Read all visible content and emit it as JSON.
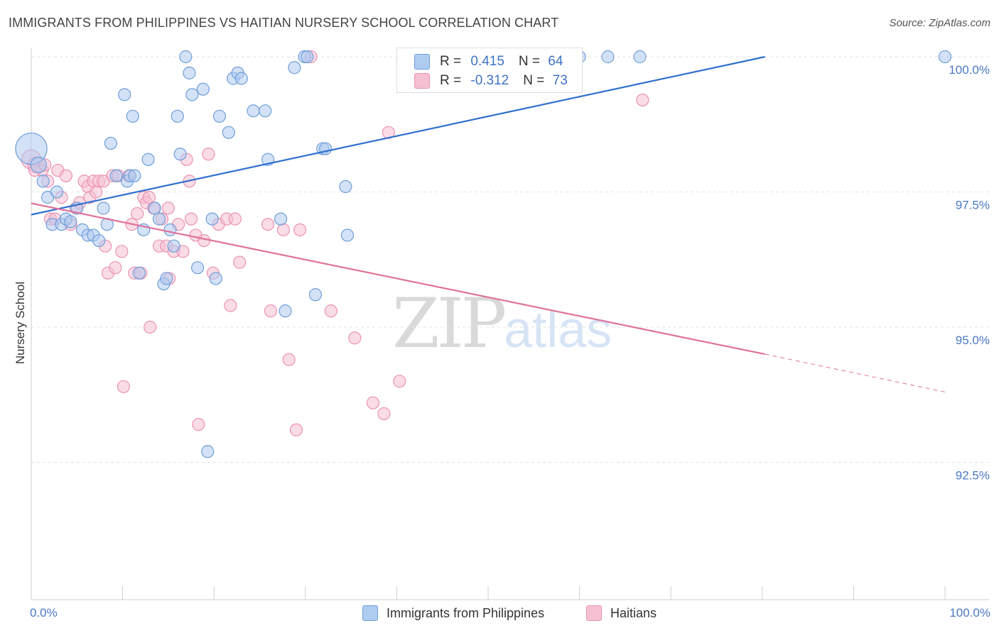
{
  "header": {
    "title": "IMMIGRANTS FROM PHILIPPINES VS HAITIAN NURSERY SCHOOL CORRELATION CHART",
    "source": "Source: ZipAtlas.com"
  },
  "watermark": {
    "zip": "ZIP",
    "atlas": "atlas"
  },
  "legend": {
    "r_label": "R = ",
    "n_label": "N = ",
    "series1": {
      "r": "0.415",
      "n": "64"
    },
    "series2": {
      "r": "-0.312",
      "n": "73"
    }
  },
  "bottom_legend": {
    "series1": "Immigrants from Philippines",
    "series2": "Haitians"
  },
  "colors": {
    "blue_fill": "#aecbf0",
    "blue_stroke": "#6f9ed8",
    "blue_line": "#2f6fcf",
    "pink_fill": "#f5c0d2",
    "pink_stroke": "#ea93b3",
    "pink_line": "#e0729a",
    "tick_text": "#4a78c4",
    "grid": "#e3e3e3"
  },
  "chart_data": {
    "type": "scatter",
    "title": "IMMIGRANTS FROM PHILIPPINES VS HAITIAN NURSERY SCHOOL CORRELATION CHART",
    "xlabel": "",
    "ylabel": "Nursery School",
    "xlim": [
      0,
      100
    ],
    "ylim": [
      90.0,
      100.3
    ],
    "x_tick_labels": [
      "0.0%",
      "100.0%"
    ],
    "y_ticks": [
      {
        "value": 100.0,
        "label": "100.0%"
      },
      {
        "value": 97.5,
        "label": "97.5%"
      },
      {
        "value": 95.0,
        "label": "95.0%"
      },
      {
        "value": 92.5,
        "label": "92.5%"
      }
    ],
    "series": [
      {
        "name": "Immigrants from Philippines",
        "r": 0.415,
        "n": 64,
        "trend": {
          "x1": 0.0,
          "y1": 97.08,
          "x2": 80.3,
          "y2": 100.0
        },
        "points": [
          [
            0.0,
            98.3,
            2.6
          ],
          [
            0.8,
            98.0,
            1.3
          ],
          [
            1.3,
            97.7,
            1.0
          ],
          [
            1.8,
            97.4,
            1.0
          ],
          [
            2.3,
            96.9,
            1.0
          ],
          [
            2.8,
            97.5,
            1.0
          ],
          [
            3.3,
            96.9,
            1.0
          ],
          [
            3.8,
            97.0,
            1.0
          ],
          [
            4.3,
            96.95,
            1.0
          ],
          [
            5.0,
            97.2,
            1.0
          ],
          [
            5.6,
            96.8,
            1.0
          ],
          [
            6.2,
            96.7,
            1.0
          ],
          [
            6.8,
            96.7,
            1.0
          ],
          [
            7.4,
            96.6,
            1.0
          ],
          [
            7.9,
            97.2,
            1.0
          ],
          [
            8.3,
            96.9,
            1.0
          ],
          [
            8.7,
            98.4,
            1.0
          ],
          [
            9.3,
            97.8,
            1.0
          ],
          [
            10.2,
            99.3,
            1.0
          ],
          [
            10.5,
            97.7,
            1.0
          ],
          [
            10.8,
            97.8,
            1.0
          ],
          [
            11.1,
            98.9,
            1.0
          ],
          [
            11.3,
            97.8,
            1.0
          ],
          [
            11.8,
            96.0,
            1.0
          ],
          [
            12.3,
            96.8,
            1.0
          ],
          [
            12.8,
            98.1,
            1.0
          ],
          [
            13.5,
            97.2,
            1.0
          ],
          [
            14.0,
            97.0,
            1.0
          ],
          [
            14.5,
            95.8,
            1.0
          ],
          [
            14.8,
            95.9,
            1.0
          ],
          [
            15.2,
            96.8,
            1.0
          ],
          [
            15.6,
            96.5,
            1.0
          ],
          [
            16.0,
            98.9,
            1.0
          ],
          [
            16.3,
            98.2,
            1.0
          ],
          [
            16.9,
            100.0,
            1.0
          ],
          [
            17.3,
            99.7,
            1.0
          ],
          [
            17.6,
            99.3,
            1.0
          ],
          [
            18.2,
            96.1,
            1.0
          ],
          [
            18.8,
            99.4,
            1.0
          ],
          [
            19.3,
            92.7,
            1.0
          ],
          [
            19.8,
            97.0,
            1.0
          ],
          [
            20.2,
            95.9,
            1.0
          ],
          [
            20.6,
            98.9,
            1.0
          ],
          [
            21.6,
            98.6,
            1.0
          ],
          [
            22.1,
            99.6,
            1.0
          ],
          [
            22.6,
            99.7,
            1.0
          ],
          [
            23.0,
            99.6,
            1.0
          ],
          [
            24.3,
            99.0,
            1.0
          ],
          [
            25.6,
            99.0,
            1.0
          ],
          [
            25.9,
            98.1,
            1.0
          ],
          [
            27.3,
            97.0,
            1.0
          ],
          [
            27.8,
            95.3,
            1.0
          ],
          [
            28.8,
            99.8,
            1.0
          ],
          [
            29.9,
            100.0,
            1.0
          ],
          [
            30.2,
            100.0,
            1.0
          ],
          [
            31.1,
            95.6,
            1.0
          ],
          [
            31.9,
            98.3,
            1.0
          ],
          [
            32.2,
            98.3,
            1.0
          ],
          [
            34.4,
            97.6,
            1.0
          ],
          [
            34.6,
            96.7,
            1.0
          ],
          [
            60.0,
            100.0,
            1.0
          ],
          [
            63.1,
            100.0,
            1.0
          ],
          [
            66.6,
            100.0,
            1.0
          ],
          [
            100.0,
            100.0,
            1.0
          ]
        ]
      },
      {
        "name": "Haitians",
        "r": -0.312,
        "n": 73,
        "trend": {
          "x1": 0.0,
          "y1": 97.29,
          "x2": 80.3,
          "y2": 94.5,
          "dash_to_x": 100.0,
          "dash_to_y": 93.8
        },
        "points": [
          [
            0.0,
            98.1,
            1.6
          ],
          [
            0.5,
            98.0,
            1.3
          ],
          [
            1.2,
            97.9,
            1.0
          ],
          [
            1.8,
            97.7,
            1.0
          ],
          [
            2.1,
            97.0,
            1.0
          ],
          [
            2.6,
            97.0,
            1.0
          ],
          [
            2.9,
            97.9,
            1.0
          ],
          [
            3.3,
            97.4,
            1.0
          ],
          [
            3.8,
            97.8,
            1.0
          ],
          [
            4.3,
            96.9,
            1.0
          ],
          [
            4.9,
            97.2,
            1.0
          ],
          [
            5.3,
            97.3,
            1.0
          ],
          [
            5.8,
            97.7,
            1.0
          ],
          [
            6.2,
            97.6,
            1.0
          ],
          [
            6.4,
            97.4,
            1.0
          ],
          [
            6.8,
            97.7,
            1.0
          ],
          [
            7.1,
            97.5,
            1.0
          ],
          [
            7.4,
            97.7,
            1.0
          ],
          [
            7.9,
            97.7,
            1.0
          ],
          [
            8.1,
            96.5,
            1.0
          ],
          [
            8.4,
            96.0,
            1.0
          ],
          [
            8.9,
            97.8,
            1.0
          ],
          [
            9.2,
            96.1,
            1.0
          ],
          [
            9.5,
            97.8,
            1.0
          ],
          [
            9.9,
            96.4,
            1.0
          ],
          [
            10.1,
            93.9,
            1.0
          ],
          [
            10.7,
            97.8,
            1.0
          ],
          [
            11.0,
            96.9,
            1.0
          ],
          [
            11.3,
            96.0,
            1.0
          ],
          [
            11.6,
            97.1,
            1.0
          ],
          [
            12.0,
            96.0,
            1.0
          ],
          [
            12.3,
            97.4,
            1.0
          ],
          [
            12.6,
            97.3,
            1.0
          ],
          [
            12.9,
            97.4,
            1.0
          ],
          [
            13.0,
            95.0,
            1.0
          ],
          [
            13.4,
            97.2,
            1.0
          ],
          [
            14.0,
            96.5,
            1.0
          ],
          [
            14.3,
            97.0,
            1.0
          ],
          [
            14.8,
            96.5,
            1.0
          ],
          [
            15.0,
            97.2,
            1.0
          ],
          [
            15.1,
            95.9,
            1.0
          ],
          [
            15.6,
            96.4,
            1.0
          ],
          [
            16.1,
            96.9,
            1.0
          ],
          [
            16.6,
            96.4,
            1.0
          ],
          [
            17.0,
            98.1,
            1.0
          ],
          [
            17.3,
            97.7,
            1.0
          ],
          [
            17.5,
            97.0,
            1.0
          ],
          [
            18.0,
            96.7,
            1.0
          ],
          [
            18.3,
            93.2,
            1.0
          ],
          [
            18.9,
            96.6,
            1.0
          ],
          [
            19.4,
            98.2,
            1.0
          ],
          [
            19.9,
            96.0,
            1.0
          ],
          [
            20.5,
            96.9,
            1.0
          ],
          [
            21.4,
            97.0,
            1.0
          ],
          [
            21.8,
            95.4,
            1.0
          ],
          [
            22.3,
            97.0,
            1.0
          ],
          [
            22.8,
            96.2,
            1.0
          ],
          [
            25.9,
            96.9,
            1.0
          ],
          [
            26.2,
            95.3,
            1.0
          ],
          [
            27.6,
            96.8,
            1.0
          ],
          [
            28.2,
            94.4,
            1.0
          ],
          [
            29.0,
            93.1,
            1.0
          ],
          [
            29.4,
            96.8,
            1.0
          ],
          [
            30.6,
            100.0,
            1.0
          ],
          [
            32.8,
            95.3,
            1.0
          ],
          [
            35.4,
            94.8,
            1.0
          ],
          [
            37.4,
            93.6,
            1.0
          ],
          [
            38.6,
            93.4,
            1.0
          ],
          [
            39.1,
            98.6,
            1.0
          ],
          [
            40.3,
            94.0,
            1.0
          ],
          [
            66.9,
            99.2,
            1.0
          ],
          [
            0.4,
            97.9,
            1.0
          ],
          [
            1.5,
            98.0,
            1.0
          ]
        ]
      }
    ],
    "legend_position": "top-center",
    "grid": true
  }
}
